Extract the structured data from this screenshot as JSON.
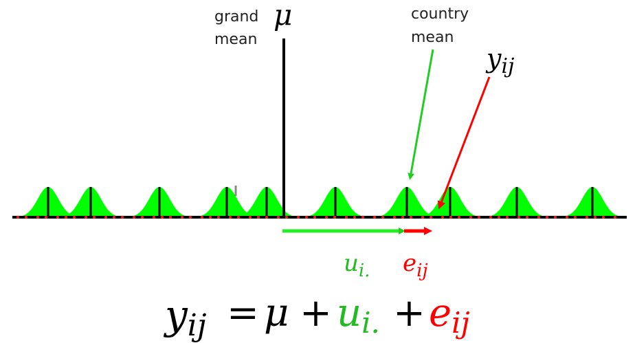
{
  "labels": {
    "grand_mean_line1": "grand",
    "grand_mean_line2": "mean",
    "country_mean_line1": "country",
    "country_mean_line2": "mean"
  },
  "symbols": {
    "mu": "μ",
    "y": "y",
    "y_sub": "ij",
    "u": "u",
    "u_sub": "i.",
    "e": "e",
    "e_sub": "ij"
  },
  "equation": {
    "lhs": "y",
    "lhs_sub": "ij",
    "equals": "=",
    "mu": "μ",
    "plus1": "+",
    "u": "u",
    "u_sub": "i.",
    "plus2": "+",
    "e": "e",
    "e_sub": "ij"
  },
  "colors": {
    "curve_fill": "#00ff00",
    "green_text": "#22bb22",
    "green_arrow": "#22cc22",
    "red": "#ff0000",
    "axis": "#000000",
    "points": "#dd2222"
  }
}
